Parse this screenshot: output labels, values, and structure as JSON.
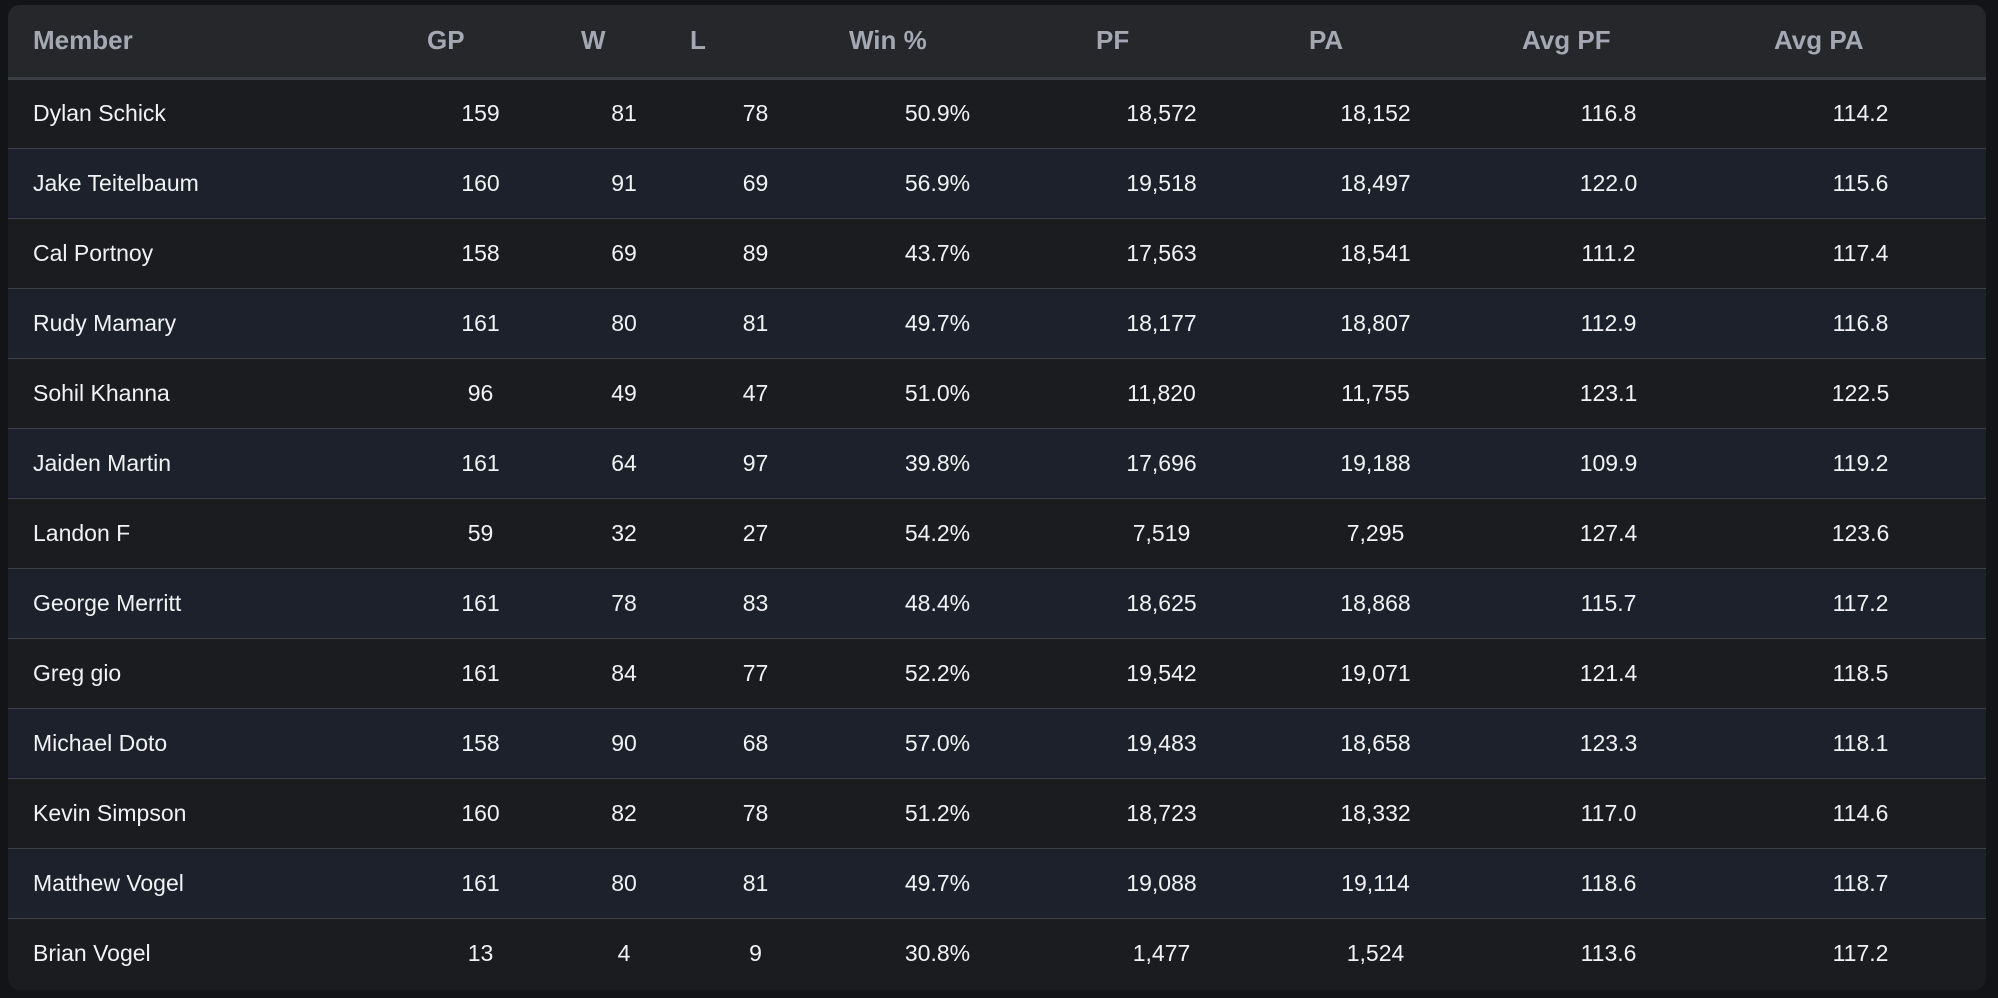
{
  "table": {
    "headers": {
      "member": "Member",
      "gp": "GP",
      "w": "W",
      "l": "L",
      "win_pct": "Win %",
      "pf": "PF",
      "pa": "PA",
      "avg_pf": "Avg PF",
      "avg_pa": "Avg PA"
    },
    "rows": [
      {
        "member": "Dylan Schick",
        "gp": "159",
        "w": "81",
        "l": "78",
        "win_pct": "50.9%",
        "pf": "18,572",
        "pa": "18,152",
        "avg_pf": "116.8",
        "avg_pa": "114.2"
      },
      {
        "member": "Jake Teitelbaum",
        "gp": "160",
        "w": "91",
        "l": "69",
        "win_pct": "56.9%",
        "pf": "19,518",
        "pa": "18,497",
        "avg_pf": "122.0",
        "avg_pa": "115.6"
      },
      {
        "member": "Cal Portnoy",
        "gp": "158",
        "w": "69",
        "l": "89",
        "win_pct": "43.7%",
        "pf": "17,563",
        "pa": "18,541",
        "avg_pf": "111.2",
        "avg_pa": "117.4"
      },
      {
        "member": "Rudy Mamary",
        "gp": "161",
        "w": "80",
        "l": "81",
        "win_pct": "49.7%",
        "pf": "18,177",
        "pa": "18,807",
        "avg_pf": "112.9",
        "avg_pa": "116.8"
      },
      {
        "member": "Sohil Khanna",
        "gp": "96",
        "w": "49",
        "l": "47",
        "win_pct": "51.0%",
        "pf": "11,820",
        "pa": "11,755",
        "avg_pf": "123.1",
        "avg_pa": "122.5"
      },
      {
        "member": "Jaiden Martin",
        "gp": "161",
        "w": "64",
        "l": "97",
        "win_pct": "39.8%",
        "pf": "17,696",
        "pa": "19,188",
        "avg_pf": "109.9",
        "avg_pa": "119.2"
      },
      {
        "member": "Landon F",
        "gp": "59",
        "w": "32",
        "l": "27",
        "win_pct": "54.2%",
        "pf": "7,519",
        "pa": "7,295",
        "avg_pf": "127.4",
        "avg_pa": "123.6"
      },
      {
        "member": "George Merritt",
        "gp": "161",
        "w": "78",
        "l": "83",
        "win_pct": "48.4%",
        "pf": "18,625",
        "pa": "18,868",
        "avg_pf": "115.7",
        "avg_pa": "117.2"
      },
      {
        "member": "Greg gio",
        "gp": "161",
        "w": "84",
        "l": "77",
        "win_pct": "52.2%",
        "pf": "19,542",
        "pa": "19,071",
        "avg_pf": "121.4",
        "avg_pa": "118.5"
      },
      {
        "member": "Michael Doto",
        "gp": "158",
        "w": "90",
        "l": "68",
        "win_pct": "57.0%",
        "pf": "19,483",
        "pa": "18,658",
        "avg_pf": "123.3",
        "avg_pa": "118.1"
      },
      {
        "member": "Kevin Simpson",
        "gp": "160",
        "w": "82",
        "l": "78",
        "win_pct": "51.2%",
        "pf": "18,723",
        "pa": "18,332",
        "avg_pf": "117.0",
        "avg_pa": "114.6"
      },
      {
        "member": "Matthew Vogel",
        "gp": "161",
        "w": "80",
        "l": "81",
        "win_pct": "49.7%",
        "pf": "19,088",
        "pa": "19,114",
        "avg_pf": "118.6",
        "avg_pa": "118.7"
      },
      {
        "member": "Brian Vogel",
        "gp": "13",
        "w": "4",
        "l": "9",
        "win_pct": "30.8%",
        "pf": "1,477",
        "pa": "1,524",
        "avg_pf": "113.6",
        "avg_pa": "117.2"
      }
    ]
  }
}
